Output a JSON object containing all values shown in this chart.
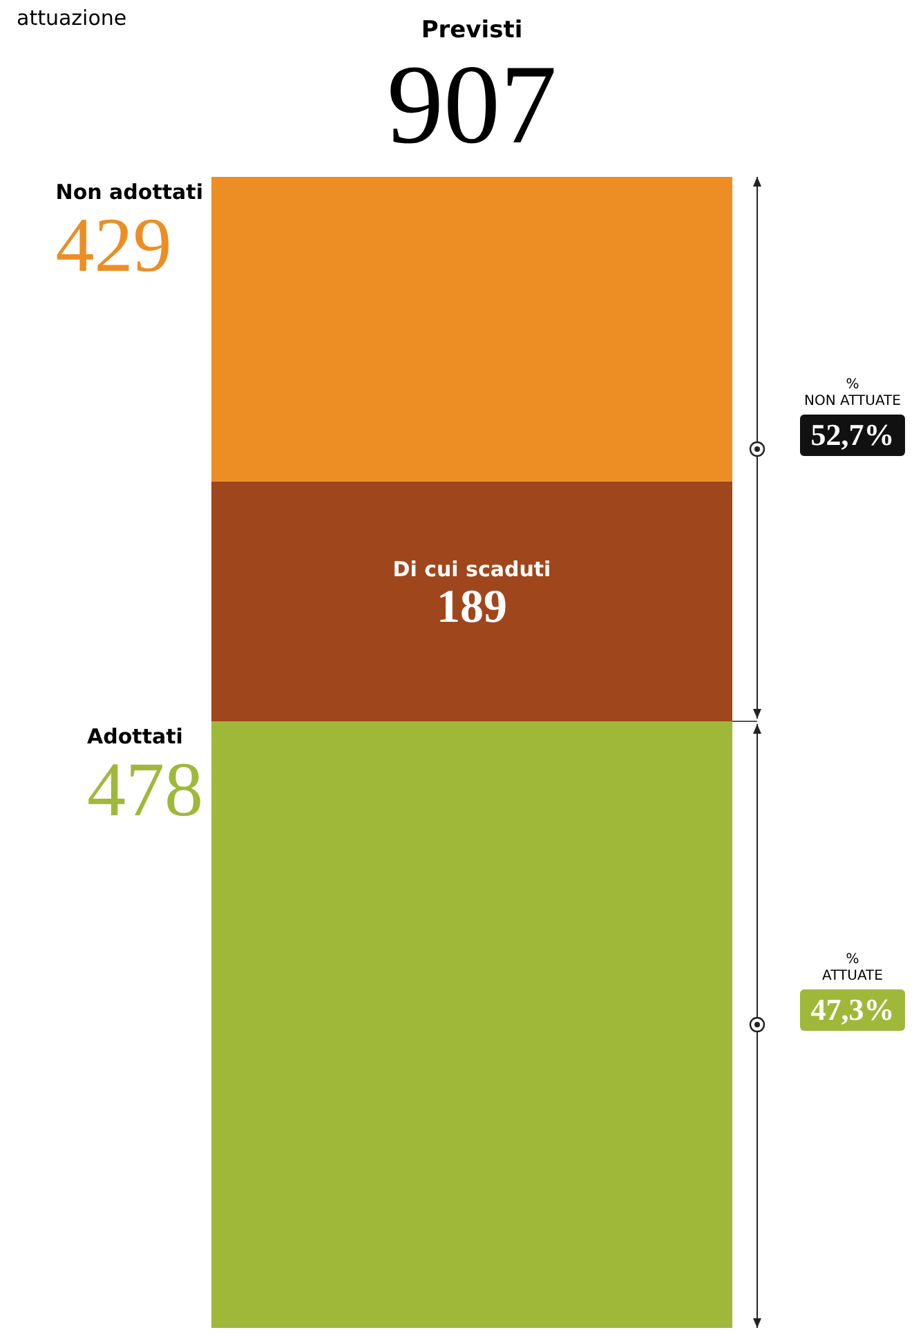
{
  "chart_data": {
    "type": "bar",
    "subtitle": "attuazione",
    "title": "Previsti",
    "totals": [
      "907"
    ],
    "stacked": true,
    "categories": [
      null
    ],
    "ylim": [
      0,
      907
    ],
    "tick_labels": false,
    "series": [
      {
        "name": "Adottati",
        "color": "#a0b83a",
        "values": [
          478
        ],
        "value_labels": [
          "478"
        ]
      },
      {
        "name": "Di cui scaduti",
        "color": "#a0461c",
        "values": [
          189
        ],
        "value_labels": [
          "189"
        ]
      },
      {
        "name": "Non adottati",
        "color": "#ec8e24",
        "values": [
          240
        ],
        "value_labels": [
          null
        ]
      }
    ],
    "annotations": [
      "% ATTUATE",
      "47,3%",
      "% NON ATTUATE",
      "52,7%",
      "429"
    ]
  }
}
